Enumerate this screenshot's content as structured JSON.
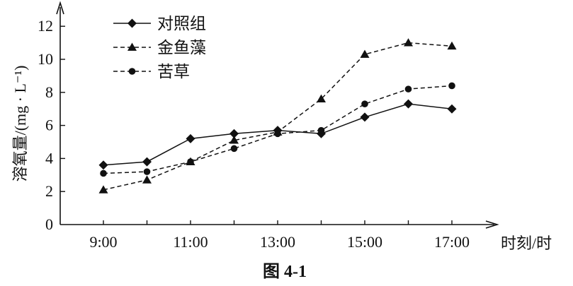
{
  "chart_data": {
    "type": "line",
    "title": "",
    "caption": "图 4-1",
    "xlabel": "时刻/时",
    "ylabel": "溶氧量/(mg · L⁻¹)",
    "categories": [
      "9:00",
      "10:00",
      "11:00",
      "12:00",
      "13:00",
      "14:00",
      "15:00",
      "16:00",
      "17:00"
    ],
    "x_tick_labels": [
      "9:00",
      "11:00",
      "13:00",
      "15:00",
      "17:00"
    ],
    "y_ticks": [
      "0",
      "2",
      "4",
      "6",
      "8",
      "10",
      "12"
    ],
    "ylim": [
      0,
      13.5
    ],
    "grid": false,
    "legend_position": "top-left",
    "series": [
      {
        "name": "对照组",
        "marker": "diamond",
        "dash": "solid",
        "values": [
          3.6,
          3.8,
          5.2,
          5.5,
          5.7,
          5.5,
          6.5,
          7.3,
          7.0
        ]
      },
      {
        "name": "金鱼藻",
        "marker": "triangle",
        "dash": "dashed",
        "values": [
          2.1,
          2.7,
          3.8,
          5.1,
          5.6,
          7.6,
          10.3,
          11.0,
          10.8
        ]
      },
      {
        "name": "苦草",
        "marker": "circle",
        "dash": "dashed",
        "values": [
          3.1,
          3.2,
          3.8,
          4.6,
          5.5,
          5.7,
          7.3,
          8.2,
          8.4
        ]
      }
    ]
  }
}
